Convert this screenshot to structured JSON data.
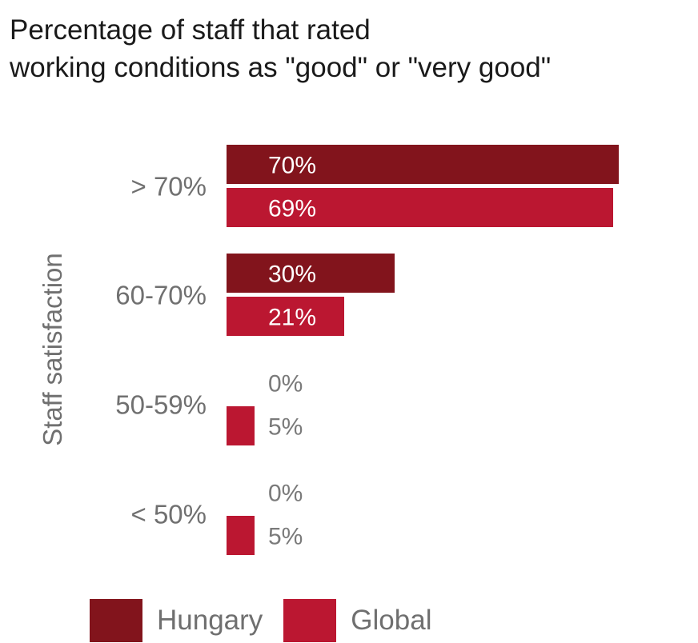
{
  "chart_data": {
    "type": "bar",
    "orientation": "horizontal",
    "title": "Percentage of staff that rated\nworking conditions as \"good\" or \"very good\"",
    "title_lines": [
      "Percentage of staff that rated",
      "working conditions as \"good\" or \"very good\""
    ],
    "ylabel": "Staff satisfaction",
    "xlabel": "",
    "categories": [
      "> 70%",
      "60-70%",
      "50-59%",
      "< 50%"
    ],
    "series": [
      {
        "name": "Hungary",
        "color": "#82141c",
        "values": [
          70,
          30,
          0,
          0
        ],
        "labels": [
          "70%",
          "30%",
          "0%",
          "0%"
        ]
      },
      {
        "name": "Global",
        "color": "#bb1731",
        "values": [
          69,
          21,
          5,
          5
        ],
        "labels": [
          "69%",
          "21%",
          "5%",
          "5%"
        ]
      }
    ],
    "xlim": [
      0,
      70
    ],
    "grid": false,
    "legend_position": "bottom-left"
  }
}
